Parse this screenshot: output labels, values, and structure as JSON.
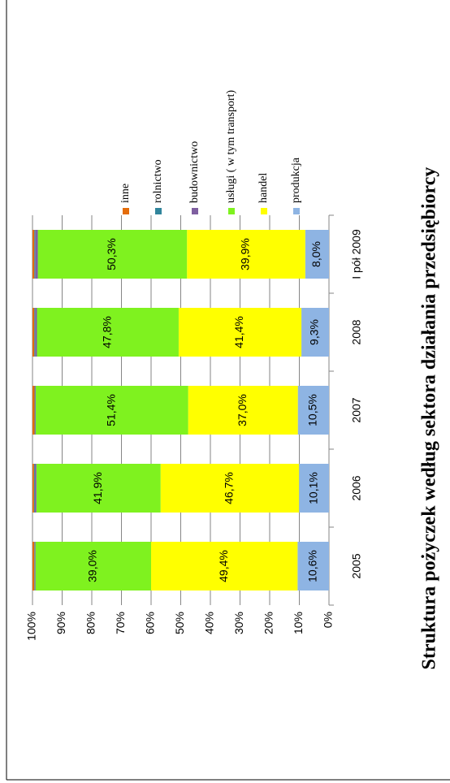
{
  "chart_data": {
    "type": "bar",
    "stacked": true,
    "title": "Struktura pożyczek według sektora działania przedsiębiorcy",
    "categories": [
      "2005",
      "2006",
      "2007",
      "2008",
      "I pół 2009"
    ],
    "series": [
      {
        "name": "produkcja",
        "color": "#8eb4e3",
        "values": [
          10.6,
          10.1,
          10.5,
          9.3,
          8.0
        ],
        "value_labels": [
          "10,6%",
          "10,1%",
          "10,5%",
          "9,3%",
          "8,0%"
        ]
      },
      {
        "name": "handel",
        "color": "#ffff00",
        "values": [
          49.4,
          46.7,
          37.0,
          41.4,
          39.9
        ],
        "value_labels": [
          "49,4%",
          "46,7%",
          "37,0%",
          "41,4%",
          "39,9%"
        ]
      },
      {
        "name": "usługi ( w tym transport)",
        "color": "#7ff21f",
        "values": [
          39.0,
          41.9,
          51.4,
          47.8,
          50.3
        ],
        "value_labels": [
          "39,0%",
          "41,9%",
          "51,4%",
          "47,8%",
          "50,3%"
        ]
      },
      {
        "name": "budownictwo",
        "color": "#7f5fa0",
        "values": [
          0.2,
          0.5,
          0.2,
          0.6,
          0.9
        ]
      },
      {
        "name": "rolnictwo",
        "color": "#31859c",
        "values": [
          0.2,
          0.3,
          0.2,
          0.3,
          0.3
        ]
      },
      {
        "name": "inne",
        "color": "#e46c0a",
        "values": [
          0.6,
          0.5,
          0.7,
          0.6,
          0.6
        ]
      }
    ],
    "ylim": [
      0,
      100
    ],
    "yticks": [
      {
        "value": 0,
        "label": "0%"
      },
      {
        "value": 10,
        "label": "10%"
      },
      {
        "value": 20,
        "label": "20%"
      },
      {
        "value": 30,
        "label": "30%"
      },
      {
        "value": 40,
        "label": "40%"
      },
      {
        "value": 50,
        "label": "50%"
      },
      {
        "value": 60,
        "label": "60%"
      },
      {
        "value": 70,
        "label": "70%"
      },
      {
        "value": 80,
        "label": "80%"
      },
      {
        "value": 90,
        "label": "90%"
      },
      {
        "value": 100,
        "label": "100%"
      }
    ],
    "grid": true,
    "legend": "right",
    "rotated": true
  }
}
